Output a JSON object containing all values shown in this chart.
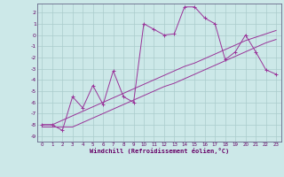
{
  "xlabel": "Windchill (Refroidissement éolien,°C)",
  "x_data": [
    0,
    1,
    2,
    3,
    4,
    5,
    6,
    7,
    8,
    9,
    10,
    11,
    12,
    13,
    14,
    15,
    16,
    17,
    18,
    19,
    20,
    21,
    22,
    23
  ],
  "y_main": [
    -8.0,
    -8.0,
    -8.5,
    -5.5,
    -6.5,
    -4.5,
    -6.2,
    -3.2,
    -5.5,
    -6.0,
    1.0,
    0.5,
    0.0,
    0.1,
    2.5,
    2.5,
    1.5,
    1.0,
    -2.2,
    -1.5,
    0.0,
    -1.5,
    -3.1,
    -3.5
  ],
  "y_line1": [
    -8.2,
    -8.2,
    -8.2,
    -8.2,
    -7.8,
    -7.4,
    -7.0,
    -6.6,
    -6.2,
    -5.8,
    -5.4,
    -5.0,
    -4.6,
    -4.3,
    -3.9,
    -3.5,
    -3.1,
    -2.7,
    -2.3,
    -1.9,
    -1.5,
    -1.1,
    -0.7,
    -0.4
  ],
  "y_line2": [
    -8.0,
    -8.0,
    -7.6,
    -7.2,
    -6.8,
    -6.4,
    -6.0,
    -5.6,
    -5.2,
    -4.8,
    -4.4,
    -4.0,
    -3.6,
    -3.2,
    -2.8,
    -2.5,
    -2.1,
    -1.7,
    -1.3,
    -0.9,
    -0.5,
    -0.2,
    0.1,
    0.4
  ],
  "color_main": "#993399",
  "bg_color": "#cce8e8",
  "grid_color": "#aacccc",
  "ylim": [
    -9.5,
    2.8
  ],
  "xlim": [
    -0.5,
    23.5
  ],
  "yticks": [
    -9,
    -8,
    -7,
    -6,
    -5,
    -4,
    -3,
    -2,
    -1,
    0,
    1,
    2
  ],
  "xticks": [
    0,
    1,
    2,
    3,
    4,
    5,
    6,
    7,
    8,
    9,
    10,
    11,
    12,
    13,
    14,
    15,
    16,
    17,
    18,
    19,
    20,
    21,
    22,
    23
  ]
}
